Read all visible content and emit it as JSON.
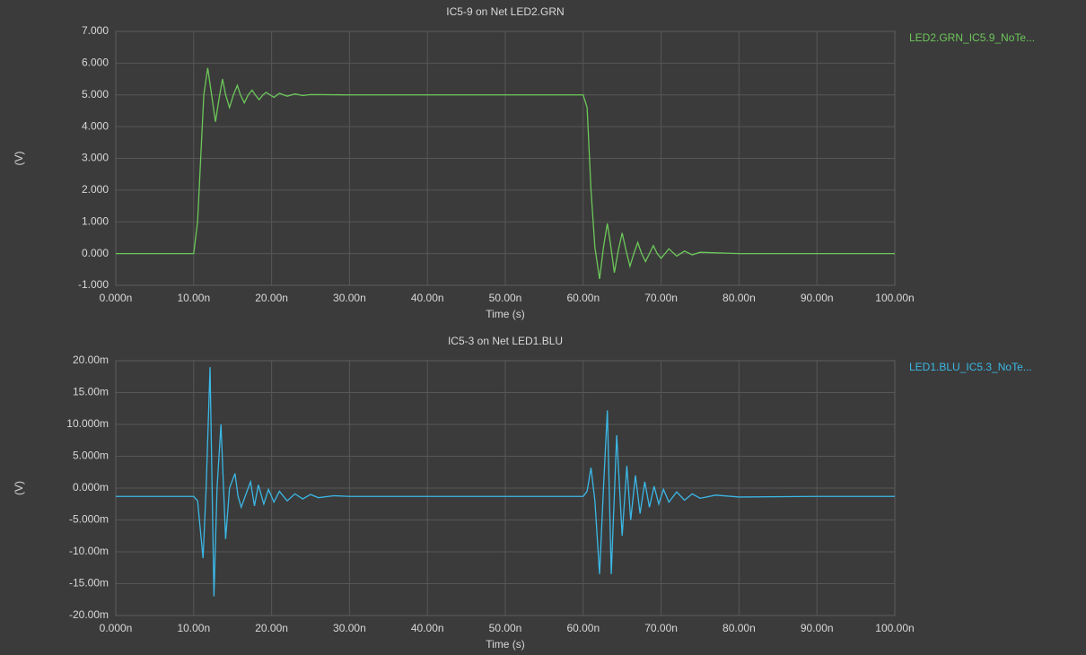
{
  "chart_data": [
    {
      "type": "line",
      "title": "IC5-9 on Net LED2.GRN",
      "x_label": "Time (s)",
      "y_label": "(V)",
      "xlim": [
        0,
        100
      ],
      "xticks": [
        {
          "value": 0,
          "label": "0.000n"
        },
        {
          "value": 10,
          "label": "10.00n"
        },
        {
          "value": 20,
          "label": "20.00n"
        },
        {
          "value": 30,
          "label": "30.00n"
        },
        {
          "value": 40,
          "label": "40.00n"
        },
        {
          "value": 50,
          "label": "50.00n"
        },
        {
          "value": 60,
          "label": "60.00n"
        },
        {
          "value": 70,
          "label": "70.00n"
        },
        {
          "value": 80,
          "label": "80.00n"
        },
        {
          "value": 90,
          "label": "90.00n"
        },
        {
          "value": 100,
          "label": "100.00n"
        }
      ],
      "ylim": [
        -1,
        7
      ],
      "yticks": [
        {
          "value": -1,
          "label": "-1.000"
        },
        {
          "value": 0,
          "label": "0.000"
        },
        {
          "value": 1,
          "label": "1.000"
        },
        {
          "value": 2,
          "label": "2.000"
        },
        {
          "value": 3,
          "label": "3.000"
        },
        {
          "value": 4,
          "label": "4.000"
        },
        {
          "value": 5,
          "label": "5.000"
        },
        {
          "value": 6,
          "label": "6.000"
        },
        {
          "value": 7,
          "label": "7.000"
        }
      ],
      "grid": true,
      "x": [
        0,
        10,
        10.5,
        11,
        11.3,
        11.8,
        12.3,
        12.8,
        13.2,
        13.7,
        14.1,
        14.6,
        15.1,
        15.6,
        16.0,
        16.5,
        17.0,
        17.5,
        17.9,
        18.4,
        18.9,
        19.3,
        19.8,
        20.3,
        21,
        22,
        23,
        24,
        25,
        30,
        40,
        50,
        60,
        60.5,
        61,
        61.5,
        62.1,
        62.6,
        63.1,
        63.5,
        64,
        64.5,
        65,
        65.5,
        66,
        66.5,
        67,
        67.5,
        68,
        68.5,
        69,
        69.5,
        70,
        70.5,
        71,
        72,
        73,
        74,
        75,
        80,
        90,
        100
      ],
      "series": [
        {
          "name": "LED2.GRN_IC5.9_NoTe...",
          "color": "#6cc75a",
          "values": [
            0,
            0,
            1.0,
            3.5,
            5.0,
            5.85,
            5.0,
            4.15,
            4.8,
            5.5,
            5.0,
            4.6,
            5.0,
            5.3,
            5.0,
            4.75,
            5.0,
            5.15,
            5.0,
            4.85,
            5.0,
            5.08,
            5.0,
            4.92,
            5.05,
            4.96,
            5.03,
            4.98,
            5.01,
            5,
            5,
            5,
            5,
            4.6,
            2.0,
            0.2,
            -0.8,
            0.2,
            0.95,
            0.3,
            -0.6,
            0.1,
            0.65,
            0.1,
            -0.4,
            0,
            0.35,
            0,
            -0.25,
            0,
            0.25,
            0,
            -0.15,
            0,
            0.15,
            -0.08,
            0.08,
            -0.04,
            0.04,
            0,
            0,
            0
          ]
        }
      ]
    },
    {
      "type": "line",
      "title": "IC5-3 on Net LED1.BLU",
      "x_label": "Time (s)",
      "y_label": "(V)",
      "xlim": [
        0,
        100
      ],
      "xticks": [
        {
          "value": 0,
          "label": "0.000n"
        },
        {
          "value": 10,
          "label": "10.00n"
        },
        {
          "value": 20,
          "label": "20.00n"
        },
        {
          "value": 30,
          "label": "30.00n"
        },
        {
          "value": 40,
          "label": "40.00n"
        },
        {
          "value": 50,
          "label": "50.00n"
        },
        {
          "value": 60,
          "label": "60.00n"
        },
        {
          "value": 70,
          "label": "70.00n"
        },
        {
          "value": 80,
          "label": "80.00n"
        },
        {
          "value": 90,
          "label": "90.00n"
        },
        {
          "value": 100,
          "label": "100.00n"
        }
      ],
      "ylim": [
        -20,
        20
      ],
      "yticks": [
        {
          "value": -20,
          "label": "-20.00m"
        },
        {
          "value": -15,
          "label": "-15.00m"
        },
        {
          "value": -10,
          "label": "-10.00m"
        },
        {
          "value": -5,
          "label": "-5.000m"
        },
        {
          "value": 0,
          "label": "0.000m"
        },
        {
          "value": 5,
          "label": "5.000m"
        },
        {
          "value": 10,
          "label": "10.000m"
        },
        {
          "value": 15,
          "label": "15.00m"
        },
        {
          "value": 20,
          "label": "20.00m"
        }
      ],
      "grid": true,
      "x": [
        0,
        10,
        10.5,
        11.2,
        11.6,
        12.1,
        12.6,
        13.0,
        13.5,
        14.1,
        14.6,
        15.3,
        15.7,
        16.1,
        16.6,
        17.3,
        17.8,
        18.3,
        19.0,
        19.6,
        20.3,
        21,
        22,
        23,
        24,
        25,
        26,
        28,
        30,
        40,
        50,
        60,
        60.5,
        61,
        61.5,
        62.1,
        62.6,
        63.1,
        63.6,
        64.3,
        65.0,
        65.6,
        66.1,
        66.7,
        67.3,
        67.9,
        68.5,
        69.1,
        69.7,
        70.3,
        71,
        72,
        73,
        74,
        75,
        77,
        80,
        90,
        100
      ],
      "series": [
        {
          "name": "LED1.BLU_IC5.3_NoTe...",
          "color": "#3bb8e6",
          "values": [
            -1.3,
            -1.3,
            -2,
            -11,
            0,
            19,
            -17,
            0,
            10,
            -8,
            0,
            2.3,
            -1.3,
            -3,
            -1.3,
            1,
            -2.8,
            0.5,
            -2.5,
            -0.2,
            -2.2,
            -0.5,
            -2,
            -0.9,
            -1.7,
            -1,
            -1.5,
            -1.2,
            -1.3,
            -1.3,
            -1.3,
            -1.3,
            -0.5,
            3.2,
            -2,
            -13.5,
            0,
            12.2,
            -13.5,
            8.3,
            -7.5,
            3.5,
            -5,
            2,
            -4,
            1,
            -3,
            0.3,
            -2.5,
            -0.2,
            -2.2,
            -0.6,
            -1.9,
            -0.9,
            -1.6,
            -1.1,
            -1.4,
            -1.3,
            -1.3
          ]
        }
      ]
    }
  ]
}
